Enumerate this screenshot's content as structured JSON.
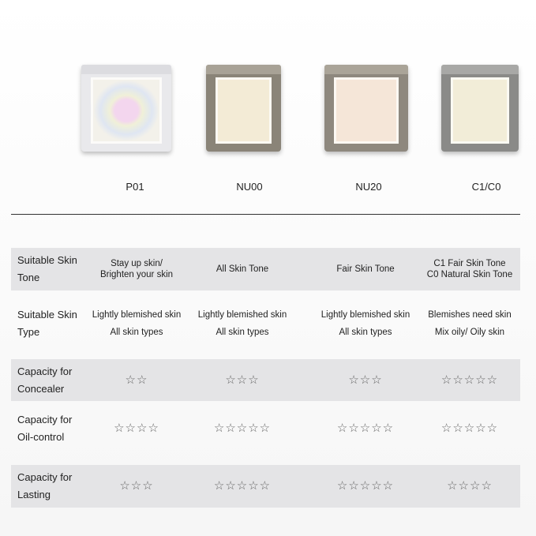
{
  "products": [
    {
      "name": "P01",
      "color": "#eeeeef",
      "pan": "#f1efe6"
    },
    {
      "name": "NU00",
      "color": "#8a8478",
      "pan": "#f3ebd6"
    },
    {
      "name": "NU20",
      "color": "#8e887e",
      "pan": "#f5e6d8"
    },
    {
      "name": "C1/C0",
      "color": "#8a8a88",
      "pan": "#f2edd8"
    }
  ],
  "rows": [
    {
      "label": "Suitable Skin Tone",
      "cells": [
        [
          "Stay up skin/",
          "Brighten your skin"
        ],
        [
          "All Skin Tone"
        ],
        [
          "Fair Skin Tone"
        ],
        [
          "C1 Fair Skin Tone",
          "C0 Natural Skin Tone"
        ]
      ]
    },
    {
      "label": "Suitable Skin Type",
      "cells": [
        [
          "Lightly blemished skin",
          "All skin types"
        ],
        [
          "Lightly blemished skin",
          "All skin types"
        ],
        [
          "Lightly blemished skin",
          "All skin types"
        ],
        [
          "Blemishes need skin",
          "Mix oily/ Oily skin"
        ]
      ]
    },
    {
      "label": "Capacity for Concealer",
      "ratings": [
        2,
        3,
        3,
        5
      ]
    },
    {
      "label": "Capacity for Oil-control",
      "ratings": [
        4,
        5,
        5,
        5
      ]
    },
    {
      "label": "Capacity for Lasting",
      "ratings": [
        3,
        5,
        5,
        4
      ]
    }
  ]
}
